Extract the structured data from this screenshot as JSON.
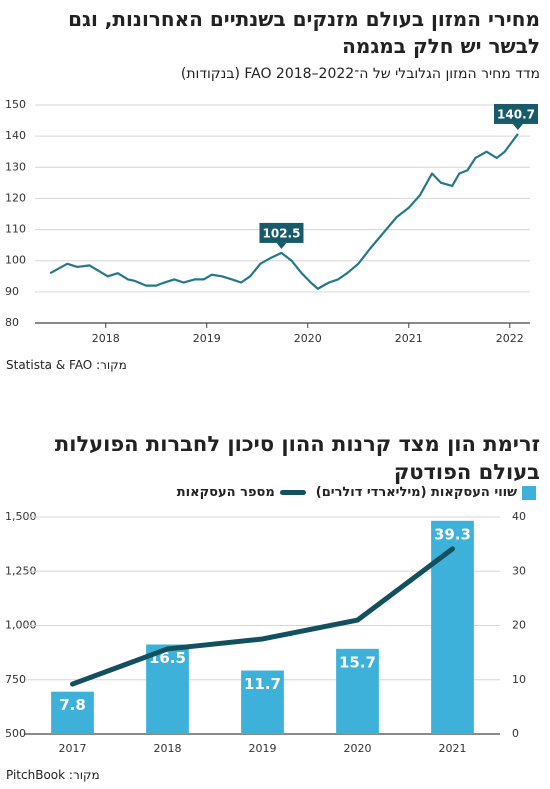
{
  "chart_data": [
    {
      "type": "line",
      "title": "מחירי המזון בעולם מזנקים בשנתיים האחרונות, וגם לבשר יש חלק במגמה",
      "subtitle": "מדד מחיר המזון הגלובלי של ה־FAO 2018–2022 (בנקודות)",
      "source": "מקור: Statista & FAO",
      "x": [
        2017.45,
        2017.62,
        2017.72,
        2017.84,
        2018.02,
        2018.12,
        2018.22,
        2018.29,
        2018.4,
        2018.5,
        2018.58,
        2018.68,
        2018.77,
        2018.88,
        2018.97,
        2019.05,
        2019.15,
        2019.25,
        2019.34,
        2019.43,
        2019.53,
        2019.64,
        2019.74,
        2019.84,
        2019.94,
        2020.03,
        2020.1,
        2020.21,
        2020.3,
        2020.39,
        2020.5,
        2020.62,
        2020.75,
        2020.88,
        2021.0,
        2021.11,
        2021.23,
        2021.32,
        2021.43,
        2021.5,
        2021.58,
        2021.66,
        2021.77,
        2021.87,
        2021.95,
        2022.08
      ],
      "series": [
        {
          "color": "#23788a",
          "values": [
            96,
            99,
            98,
            98.5,
            95,
            96,
            94,
            93.5,
            92,
            92,
            93,
            94,
            93,
            94,
            94,
            95.5,
            95,
            94,
            93,
            95,
            99,
            101,
            102.5,
            100,
            96,
            93,
            91,
            93,
            94,
            96,
            99,
            104,
            109,
            114,
            117,
            121,
            128,
            125,
            124,
            128,
            129,
            133,
            135,
            133,
            135,
            140.7
          ],
          "value_labels": [
            null,
            null,
            null,
            null,
            null,
            null,
            null,
            null,
            null,
            null,
            null,
            null,
            null,
            null,
            null,
            null,
            null,
            null,
            null,
            null,
            null,
            null,
            "102.5",
            null,
            null,
            null,
            null,
            null,
            null,
            null,
            null,
            null,
            null,
            null,
            null,
            null,
            null,
            null,
            null,
            null,
            null,
            null,
            null,
            null,
            null,
            "140.7"
          ]
        }
      ],
      "xlim": [
        2017.3,
        2022.2
      ],
      "xticks": [
        2018,
        2019,
        2020,
        2021,
        2022
      ],
      "ylim": [
        80,
        150
      ],
      "yticks": [
        80,
        90,
        100,
        110,
        120,
        130,
        140,
        150
      ],
      "grid": true
    },
    {
      "type": "combo",
      "title": "זרימת הון מצד קרנות ההון סיכון לחברות הפועלות בעולם הפודטק",
      "source": "מקור: PitchBook",
      "categories": [
        "2017",
        "2018",
        "2019",
        "2020",
        "2021"
      ],
      "series": [
        {
          "name": "שווי העסקאות (מיליארדי דולרים)",
          "type": "bar",
          "axis": "y2",
          "color": "#3eb1da",
          "values": [
            7.8,
            16.5,
            11.7,
            15.7,
            39.3
          ]
        },
        {
          "name": "מספר העסקאות",
          "type": "line",
          "color": "#12505f",
          "values": [
            730,
            892,
            938,
            1025,
            1353
          ]
        }
      ],
      "ylim": [
        500,
        1500
      ],
      "yticks": [
        500,
        750,
        {
          "value": 1000,
          "label": "1,000"
        },
        {
          "value": 1250,
          "label": "1,250"
        },
        {
          "value": 1500,
          "label": "1,500"
        }
      ],
      "y2lim": [
        0,
        40
      ],
      "y2ticks": [
        0,
        10,
        20,
        30,
        40
      ],
      "grid": true
    }
  ]
}
